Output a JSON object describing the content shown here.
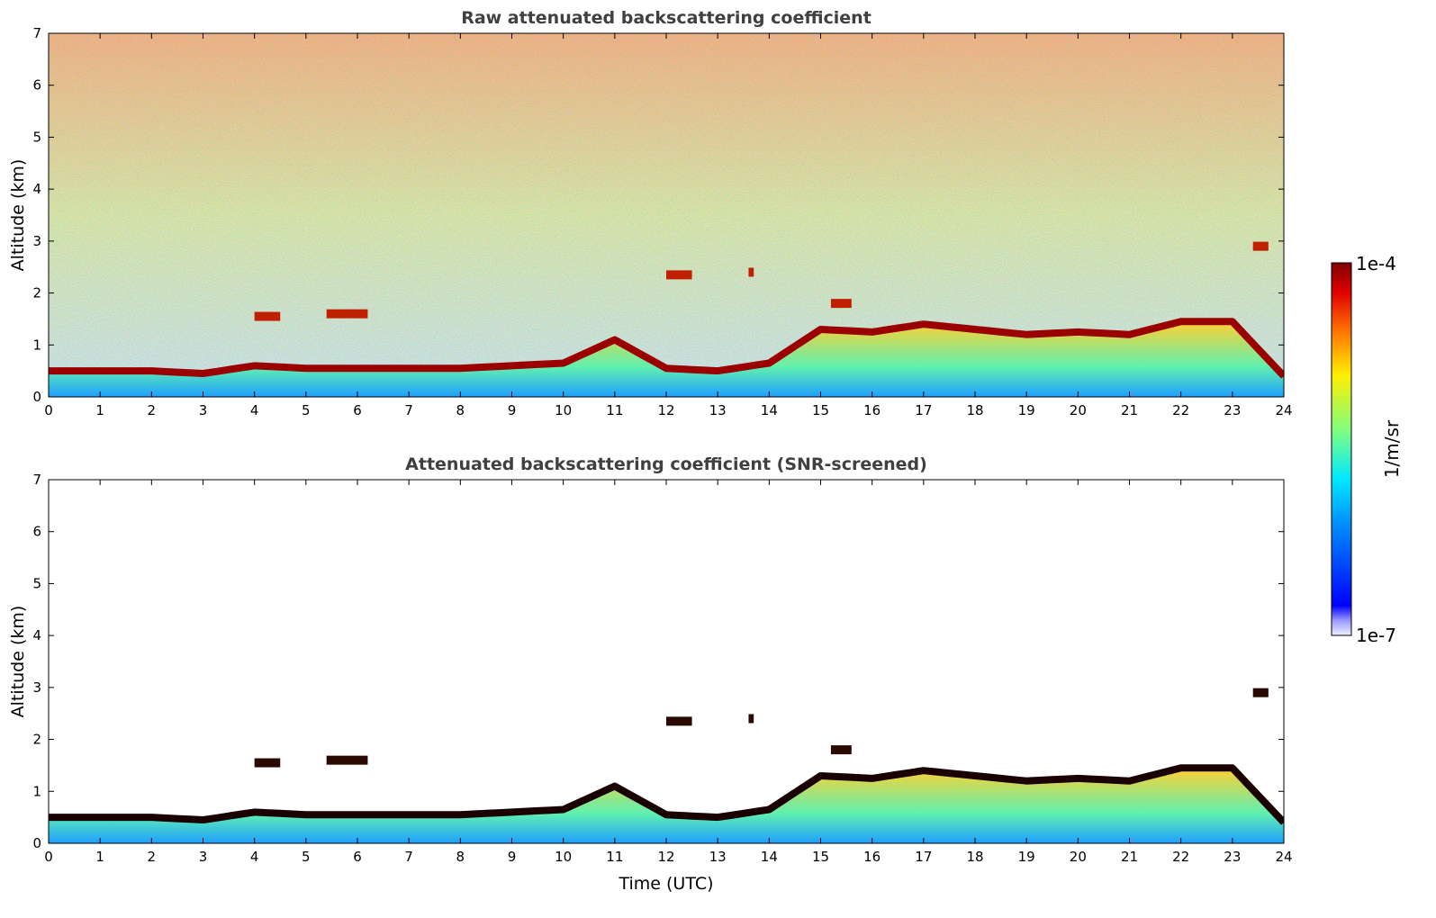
{
  "chart_data": [
    {
      "type": "heatmap",
      "title": "Raw attenuated backscattering coefficient",
      "xlabel": "",
      "ylabel": "Altitude (km)",
      "xlim": [
        0,
        24
      ],
      "ylim": [
        0,
        7
      ],
      "xticks": [
        "0",
        "1",
        "2",
        "3",
        "4",
        "5",
        "6",
        "7",
        "8",
        "9",
        "10",
        "11",
        "12",
        "13",
        "14",
        "15",
        "16",
        "17",
        "18",
        "19",
        "20",
        "21",
        "22",
        "23",
        "24"
      ],
      "yticks": [
        "0",
        "1",
        "2",
        "3",
        "4",
        "5",
        "6",
        "7"
      ],
      "screened": false,
      "boundary_layer_top_km": {
        "time": [
          0,
          2,
          3,
          4,
          5,
          6,
          8,
          10,
          11,
          12,
          13,
          14,
          15,
          16,
          17,
          18,
          19,
          20,
          21,
          22,
          23,
          24
        ],
        "altitude": [
          0.5,
          0.5,
          0.45,
          0.6,
          0.55,
          0.55,
          0.55,
          0.65,
          1.1,
          0.55,
          0.5,
          0.65,
          1.3,
          1.25,
          1.4,
          1.3,
          1.2,
          1.25,
          1.2,
          1.45,
          1.45,
          0.4
        ]
      },
      "cloud_layers": [
        {
          "time_start": 4.0,
          "time_end": 4.5,
          "altitude": 1.55
        },
        {
          "time_start": 5.4,
          "time_end": 6.2,
          "altitude": 1.6
        },
        {
          "time_start": 12.0,
          "time_end": 12.5,
          "altitude": 2.35
        },
        {
          "time_start": 13.6,
          "time_end": 13.7,
          "altitude": 2.4
        },
        {
          "time_start": 15.2,
          "time_end": 15.6,
          "altitude": 1.8
        },
        {
          "time_start": 23.4,
          "time_end": 23.7,
          "altitude": 2.9
        }
      ]
    },
    {
      "type": "heatmap",
      "title": "Attenuated backscattering coefficient (SNR-screened)",
      "xlabel": "Time (UTC)",
      "ylabel": "Altitude (km)",
      "xlim": [
        0,
        24
      ],
      "ylim": [
        0,
        7
      ],
      "xticks": [
        "0",
        "1",
        "2",
        "3",
        "4",
        "5",
        "6",
        "7",
        "8",
        "9",
        "10",
        "11",
        "12",
        "13",
        "14",
        "15",
        "16",
        "17",
        "18",
        "19",
        "20",
        "21",
        "22",
        "23",
        "24"
      ],
      "yticks": [
        "0",
        "1",
        "2",
        "3",
        "4",
        "5",
        "6",
        "7"
      ],
      "screened": true
    }
  ],
  "colorbar": {
    "label": "1/m/sr",
    "max_label": "1e-4",
    "min_label": "1e-7",
    "scale": "log",
    "range": [
      1e-07,
      0.0001
    ],
    "colormap": "jet",
    "colors": [
      "#00007f",
      "#0000ff",
      "#007fff",
      "#00ffff",
      "#7fff7f",
      "#ffff00",
      "#ff7f00",
      "#ff0000",
      "#7f0000"
    ]
  }
}
